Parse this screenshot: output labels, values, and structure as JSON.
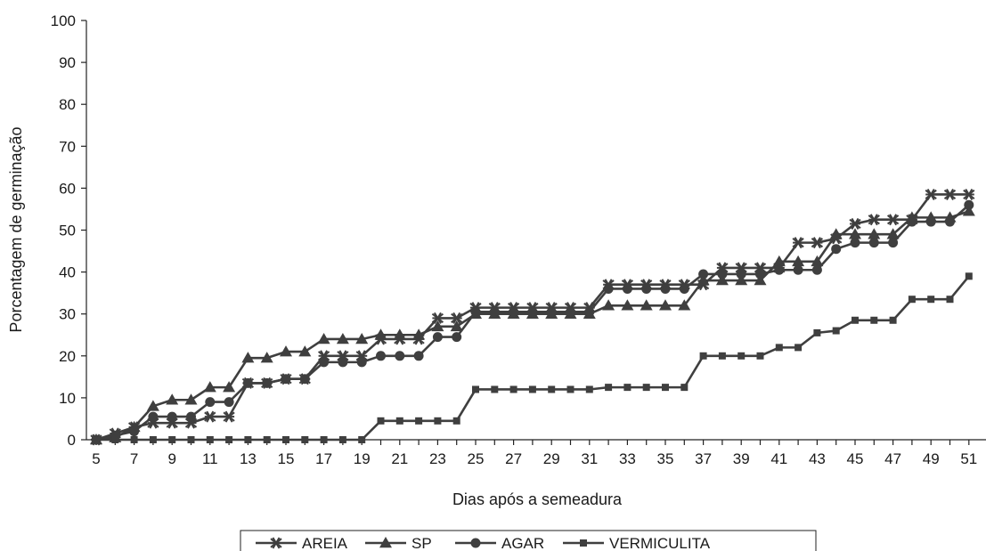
{
  "chart_data": {
    "type": "line",
    "title": "",
    "xlabel": "Dias após a semeadura",
    "ylabel": "Porcentagem de germinação",
    "ylim": [
      0,
      100
    ],
    "yticks": [
      0,
      10,
      20,
      30,
      40,
      50,
      60,
      70,
      80,
      90,
      100
    ],
    "xlim": [
      5,
      51
    ],
    "xticks": [
      5,
      7,
      9,
      11,
      13,
      15,
      17,
      19,
      21,
      23,
      25,
      27,
      29,
      31,
      33,
      35,
      37,
      39,
      41,
      43,
      45,
      47,
      49,
      51
    ],
    "grid": false,
    "legend_position": "bottom",
    "x": [
      5,
      6,
      7,
      8,
      9,
      10,
      11,
      12,
      13,
      14,
      15,
      16,
      17,
      18,
      19,
      20,
      21,
      22,
      23,
      24,
      25,
      26,
      27,
      28,
      29,
      30,
      31,
      32,
      33,
      34,
      35,
      36,
      37,
      38,
      39,
      40,
      41,
      42,
      43,
      44,
      45,
      46,
      47,
      48,
      49,
      50,
      51
    ],
    "series": [
      {
        "name": "AREIA",
        "marker": "asterisk",
        "values": [
          0,
          1.5,
          3,
          4,
          4,
          4,
          5.5,
          5.5,
          13.5,
          13.5,
          14.5,
          14.5,
          20,
          20,
          20,
          24,
          24,
          24,
          29,
          29,
          31.5,
          31.5,
          31.5,
          31.5,
          31.5,
          31.5,
          31.5,
          37,
          37,
          37,
          37,
          37,
          37,
          41,
          41,
          41,
          41,
          47,
          47,
          48,
          51.5,
          52.5,
          52.5,
          52.5,
          58.5,
          58.5,
          58.5
        ]
      },
      {
        "name": "SP",
        "marker": "triangle",
        "values": [
          0,
          0.5,
          3,
          8,
          9.5,
          9.5,
          12.5,
          12.5,
          19.5,
          19.5,
          21,
          21,
          24,
          24,
          24,
          25,
          25,
          25,
          27,
          27,
          30,
          30,
          30,
          30,
          30,
          30,
          30,
          32,
          32,
          32,
          32,
          32,
          38,
          38,
          38,
          38,
          42.5,
          42.5,
          42.5,
          49,
          49,
          49,
          49,
          53,
          53,
          53,
          54.5
        ]
      },
      {
        "name": "AGAR",
        "marker": "circle",
        "values": [
          0,
          1,
          2,
          5.5,
          5.5,
          5.5,
          9,
          9,
          13.5,
          13.5,
          14.5,
          14.5,
          18.5,
          18.5,
          18.5,
          20,
          20,
          20,
          24.5,
          24.5,
          30.5,
          30.5,
          30.5,
          30.5,
          30.5,
          30.5,
          30.5,
          36,
          36,
          36,
          36,
          36,
          39.5,
          39.5,
          39.5,
          39.5,
          40.5,
          40.5,
          40.5,
          45.5,
          47,
          47,
          47,
          52,
          52,
          52,
          56
        ]
      },
      {
        "name": "VERMICULITA",
        "marker": "square",
        "values": [
          0,
          0,
          0,
          0,
          0,
          0,
          0,
          0,
          0,
          0,
          0,
          0,
          0,
          0,
          0,
          4.5,
          4.5,
          4.5,
          4.5,
          4.5,
          12,
          12,
          12,
          12,
          12,
          12,
          12,
          12.5,
          12.5,
          12.5,
          12.5,
          12.5,
          20,
          20,
          20,
          20,
          22,
          22,
          25.5,
          26,
          28.5,
          28.5,
          28.5,
          33.5,
          33.5,
          33.5,
          39
        ]
      }
    ]
  }
}
